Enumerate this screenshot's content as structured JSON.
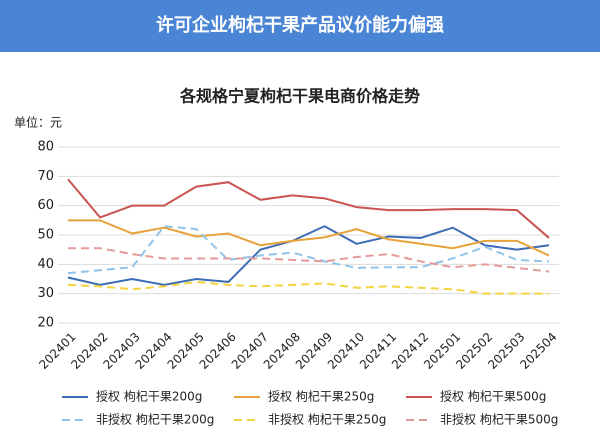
{
  "header": {
    "title": "许可企业枸杞干果产品议价能力偏强"
  },
  "chart_data": {
    "type": "line",
    "title": "各规格宁夏枸杞干果电商价格走势",
    "y_unit": "单位：元",
    "categories": [
      "202401",
      "202402",
      "202403",
      "202404",
      "202405",
      "202406",
      "202407",
      "202408",
      "202409",
      "202410",
      "202411",
      "202412",
      "202501",
      "202502",
      "202503",
      "202504"
    ],
    "ylim": [
      20,
      80
    ],
    "yticks": [
      20,
      30,
      40,
      50,
      60,
      70,
      80
    ],
    "grid": true,
    "series": [
      {
        "name": "授权 枸杞干果200g",
        "color": "#3d6db5",
        "dashed": false,
        "values": [
          35.5,
          33,
          35,
          33,
          35,
          34,
          45,
          48,
          53,
          47,
          49.5,
          49,
          52.5,
          46.5,
          45,
          46.5
        ]
      },
      {
        "name": "授权 枸杞干果250g",
        "color": "#e8a23a",
        "dashed": false,
        "values": [
          55,
          55,
          50.5,
          52.5,
          49.5,
          50.5,
          46.5,
          48,
          49.2,
          52,
          48.5,
          47,
          45.5,
          48,
          48,
          43
        ]
      },
      {
        "name": "授权 枸杞干果500g",
        "color": "#c95450",
        "dashed": false,
        "values": [
          69,
          56,
          60,
          60,
          66.5,
          68,
          62,
          63.5,
          62.5,
          59.5,
          58.5,
          58.5,
          58.8,
          58.8,
          58.5,
          49
        ]
      },
      {
        "name": "非授权 枸杞干果200g",
        "color": "#8fc3ea",
        "dashed": true,
        "values": [
          37,
          38,
          39,
          53,
          52,
          41.5,
          43,
          44,
          41,
          38.8,
          39,
          39,
          42,
          46,
          41.5,
          41
        ]
      },
      {
        "name": "非授权 枸杞干果250g",
        "color": "#f3d43c",
        "dashed": true,
        "values": [
          33,
          32.5,
          31.5,
          32.5,
          34,
          33,
          32.5,
          33,
          33.5,
          32,
          32.5,
          32,
          31.5,
          30,
          30,
          30
        ]
      },
      {
        "name": "非授权 枸杞干果500g",
        "color": "#e59a9a",
        "dashed": true,
        "values": [
          45.5,
          45.5,
          43.5,
          42,
          42,
          42,
          42,
          41.5,
          41,
          42.5,
          43.5,
          41,
          39,
          40,
          38.8,
          37.5
        ]
      }
    ]
  }
}
